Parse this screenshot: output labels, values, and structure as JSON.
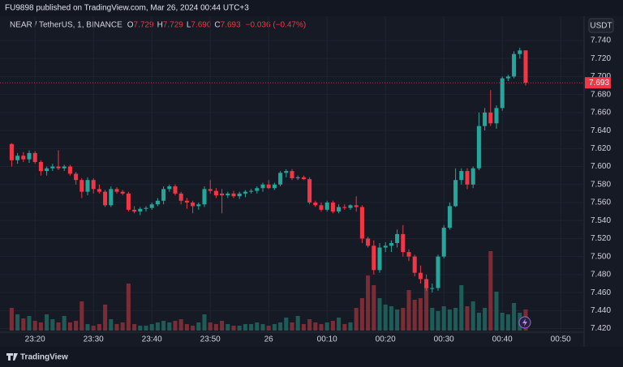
{
  "header": {
    "publisher": "FU9898 published on TradingView.com, Mar 26, 2024 00:44 UTC+3",
    "currency": "USDT",
    "brand": "TradingView"
  },
  "chart_data": {
    "type": "candlestick",
    "title": "NEAR / TetherUS, 1, BINANCE",
    "legend": [
      "O",
      "7.729",
      "H",
      "7.729",
      "L",
      "7.690",
      "C",
      "7.693"
    ],
    "change": "−0.036 (−0.47%)",
    "last_price_label": "7.693",
    "up_color": "#26a69a",
    "down_color": "#f23645",
    "volume_up_color": "#1f5c58",
    "volume_down_color": "#7b2d36",
    "grid": true,
    "xlim": [
      14,
      114
    ],
    "xticks": [
      {
        "value": 20,
        "label": "23:20"
      },
      {
        "value": 30,
        "label": "23:30"
      },
      {
        "value": 40,
        "label": "23:40"
      },
      {
        "value": 50,
        "label": "23:50"
      },
      {
        "value": 60,
        "label": "26"
      },
      {
        "value": 70,
        "label": "00:10"
      },
      {
        "value": 80,
        "label": "00:20"
      },
      {
        "value": 90,
        "label": "00:30"
      },
      {
        "value": 100,
        "label": "00:40"
      },
      {
        "value": 110,
        "label": "00:50"
      }
    ],
    "ylim": [
      7.416,
      7.749
    ],
    "yticks": [
      {
        "value": 7.42,
        "label": "7.420"
      },
      {
        "value": 7.44,
        "label": "7.440"
      },
      {
        "value": 7.46,
        "label": "7.460"
      },
      {
        "value": 7.48,
        "label": "7.480"
      },
      {
        "value": 7.5,
        "label": "7.500"
      },
      {
        "value": 7.52,
        "label": "7.520"
      },
      {
        "value": 7.54,
        "label": "7.540"
      },
      {
        "value": 7.56,
        "label": "7.560"
      },
      {
        "value": 7.58,
        "label": "7.580"
      },
      {
        "value": 7.6,
        "label": "7.600"
      },
      {
        "value": 7.62,
        "label": "7.620"
      },
      {
        "value": 7.64,
        "label": "7.640"
      },
      {
        "value": 7.66,
        "label": "7.660"
      },
      {
        "value": 7.68,
        "label": "7.680"
      },
      {
        "value": 7.7,
        "label": "7.700"
      },
      {
        "value": 7.72,
        "label": "7.720"
      },
      {
        "value": 7.74,
        "label": "7.740"
      }
    ],
    "x": [
      16,
      17,
      18,
      19,
      20,
      21,
      22,
      23,
      24,
      25,
      26,
      27,
      28,
      29,
      30,
      31,
      32,
      33,
      34,
      35,
      36,
      37,
      38,
      39,
      40,
      41,
      42,
      43,
      44,
      45,
      46,
      47,
      48,
      49,
      50,
      51,
      52,
      53,
      54,
      55,
      56,
      57,
      58,
      59,
      60,
      61,
      62,
      63,
      64,
      65,
      66,
      67,
      68,
      69,
      70,
      71,
      72,
      73,
      74,
      75,
      76,
      77,
      78,
      79,
      80,
      81,
      82,
      83,
      84,
      85,
      86,
      87,
      88,
      89,
      90,
      91,
      92,
      93,
      94,
      95,
      96,
      97,
      98,
      99,
      100,
      101,
      102,
      103,
      104
    ],
    "ohlc": [
      [
        7.625,
        7.626,
        7.6,
        7.607
      ],
      [
        7.607,
        7.615,
        7.603,
        7.612
      ],
      [
        7.612,
        7.616,
        7.605,
        7.608
      ],
      [
        7.608,
        7.618,
        7.604,
        7.615
      ],
      [
        7.615,
        7.617,
        7.603,
        7.605
      ],
      [
        7.605,
        7.607,
        7.59,
        7.595
      ],
      [
        7.595,
        7.6,
        7.59,
        7.598
      ],
      [
        7.598,
        7.603,
        7.595,
        7.6
      ],
      [
        7.6,
        7.618,
        7.596,
        7.598
      ],
      [
        7.598,
        7.602,
        7.595,
        7.6
      ],
      [
        7.6,
        7.602,
        7.59,
        7.592
      ],
      [
        7.592,
        7.594,
        7.58,
        7.585
      ],
      [
        7.585,
        7.587,
        7.565,
        7.572
      ],
      [
        7.572,
        7.588,
        7.568,
        7.585
      ],
      [
        7.585,
        7.587,
        7.57,
        7.575
      ],
      [
        7.575,
        7.58,
        7.57,
        7.572
      ],
      [
        7.572,
        7.574,
        7.555,
        7.557
      ],
      [
        7.557,
        7.578,
        7.555,
        7.575
      ],
      [
        7.575,
        7.577,
        7.57,
        7.572
      ],
      [
        7.572,
        7.574,
        7.568,
        7.57
      ],
      [
        7.57,
        7.572,
        7.55,
        7.552
      ],
      [
        7.552,
        7.556,
        7.548,
        7.55
      ],
      [
        7.55,
        7.555,
        7.546,
        7.553
      ],
      [
        7.553,
        7.556,
        7.55,
        7.554
      ],
      [
        7.554,
        7.56,
        7.552,
        7.558
      ],
      [
        7.558,
        7.565,
        7.556,
        7.562
      ],
      [
        7.562,
        7.578,
        7.558,
        7.575
      ],
      [
        7.575,
        7.58,
        7.572,
        7.578
      ],
      [
        7.578,
        7.58,
        7.568,
        7.57
      ],
      [
        7.57,
        7.572,
        7.558,
        7.562
      ],
      [
        7.562,
        7.565,
        7.553,
        7.56
      ],
      [
        7.56,
        7.562,
        7.548,
        7.556
      ],
      [
        7.556,
        7.56,
        7.552,
        7.558
      ],
      [
        7.558,
        7.578,
        7.555,
        7.575
      ],
      [
        7.575,
        7.585,
        7.57,
        7.573
      ],
      [
        7.573,
        7.576,
        7.565,
        7.568
      ],
      [
        7.57,
        7.575,
        7.548,
        7.568
      ],
      [
        7.568,
        7.572,
        7.565,
        7.57
      ],
      [
        7.57,
        7.573,
        7.565,
        7.567
      ],
      [
        7.567,
        7.572,
        7.564,
        7.57
      ],
      [
        7.57,
        7.574,
        7.566,
        7.572
      ],
      [
        7.572,
        7.575,
        7.57,
        7.573
      ],
      [
        7.573,
        7.578,
        7.57,
        7.576
      ],
      [
        7.576,
        7.582,
        7.572,
        7.58
      ],
      [
        7.58,
        7.585,
        7.575,
        7.576
      ],
      [
        7.576,
        7.582,
        7.574,
        7.58
      ],
      [
        7.58,
        7.595,
        7.578,
        7.593
      ],
      [
        7.593,
        7.597,
        7.588,
        7.595
      ],
      [
        7.595,
        7.597,
        7.585,
        7.587
      ],
      [
        7.587,
        7.59,
        7.585,
        7.588
      ],
      [
        7.588,
        7.59,
        7.585,
        7.586
      ],
      [
        7.586,
        7.588,
        7.558,
        7.56
      ],
      [
        7.56,
        7.562,
        7.555,
        7.557
      ],
      [
        7.557,
        7.56,
        7.55,
        7.552
      ],
      [
        7.552,
        7.562,
        7.55,
        7.56
      ],
      [
        7.56,
        7.562,
        7.548,
        7.55
      ],
      [
        7.55,
        7.558,
        7.548,
        7.555
      ],
      [
        7.555,
        7.558,
        7.552,
        7.554
      ],
      [
        7.554,
        7.558,
        7.552,
        7.557
      ],
      [
        7.557,
        7.567,
        7.55,
        7.555
      ],
      [
        7.555,
        7.557,
        7.515,
        7.52
      ],
      [
        7.52,
        7.522,
        7.51,
        7.512
      ],
      [
        7.512,
        7.518,
        7.48,
        7.485
      ],
      [
        7.485,
        7.515,
        7.482,
        7.51
      ],
      [
        7.51,
        7.516,
        7.505,
        7.512
      ],
      [
        7.512,
        7.518,
        7.505,
        7.515
      ],
      [
        7.515,
        7.53,
        7.51,
        7.525
      ],
      [
        7.525,
        7.535,
        7.5,
        7.505
      ],
      [
        7.505,
        7.508,
        7.495,
        7.5
      ],
      [
        7.5,
        7.502,
        7.478,
        7.482
      ],
      [
        7.482,
        7.49,
        7.47,
        7.475
      ],
      [
        7.475,
        7.48,
        7.462,
        7.465
      ],
      [
        7.465,
        7.47,
        7.46,
        7.465
      ],
      [
        7.465,
        7.502,
        7.462,
        7.5
      ],
      [
        7.5,
        7.535,
        7.498,
        7.532
      ],
      [
        7.532,
        7.56,
        7.53,
        7.556
      ],
      [
        7.556,
        7.598,
        7.555,
        7.585
      ],
      [
        7.585,
        7.598,
        7.58,
        7.595
      ],
      [
        7.595,
        7.598,
        7.575,
        7.58
      ],
      [
        7.58,
        7.6,
        7.576,
        7.598
      ],
      [
        7.598,
        7.66,
        7.596,
        7.645
      ],
      [
        7.645,
        7.665,
        7.64,
        7.66
      ],
      [
        7.66,
        7.685,
        7.645,
        7.648
      ],
      [
        7.648,
        7.668,
        7.642,
        7.665
      ],
      [
        7.665,
        7.7,
        7.662,
        7.698
      ],
      [
        7.698,
        7.702,
        7.695,
        7.7
      ],
      [
        7.7,
        7.728,
        7.698,
        7.725
      ],
      [
        7.725,
        7.732,
        7.72,
        7.729
      ],
      [
        7.729,
        7.729,
        7.69,
        7.693
      ]
    ],
    "volume": [
      28,
      20,
      15,
      18,
      12,
      10,
      20,
      14,
      10,
      18,
      10,
      12,
      36,
      8,
      6,
      8,
      32,
      14,
      8,
      10,
      58,
      8,
      6,
      6,
      8,
      10,
      12,
      10,
      12,
      14,
      8,
      6,
      10,
      20,
      10,
      8,
      12,
      8,
      6,
      6,
      8,
      8,
      10,
      8,
      6,
      8,
      10,
      16,
      10,
      18,
      8,
      14,
      10,
      8,
      10,
      12,
      16,
      8,
      10,
      28,
      40,
      68,
      56,
      40,
      32,
      30,
      26,
      28,
      50,
      38,
      40,
      56,
      28,
      24,
      30,
      26,
      28,
      56,
      30,
      36,
      22,
      28,
      98,
      48,
      22,
      20,
      34,
      22,
      26
    ]
  }
}
